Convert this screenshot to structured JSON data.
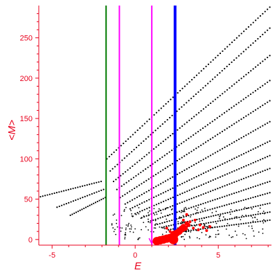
{
  "chart_data": {
    "type": "scatter",
    "xlabel": "E",
    "ylabel": "<M>",
    "xlim": [
      -5.8,
      8.2
    ],
    "ylim": [
      -7,
      290
    ],
    "x_ticks": [
      -5,
      0,
      5
    ],
    "y_ticks": [
      0,
      50,
      100,
      150,
      200,
      250
    ],
    "grid": false,
    "colors": {
      "axis": "#e8001c",
      "black_points": "#000000",
      "red_points": "#ff0000",
      "green_line": "#007a00",
      "magenta_line": "#ff00ff",
      "blue_line": "#0000ff"
    },
    "vertical_lines": [
      {
        "x": -1.75,
        "color": "green",
        "style": "solid"
      },
      {
        "x": -0.95,
        "color": "magenta",
        "style": "solid"
      },
      {
        "x": 1.0,
        "color": "magenta",
        "style": "solid-arrow"
      },
      {
        "x": 2.4,
        "color": "blue",
        "style": "thick"
      }
    ],
    "black_series": [
      {
        "x_start": -5.7,
        "x_end": -2.05,
        "y_start": 53,
        "y_end": 72,
        "slope": 0
      },
      {
        "x_start": -4.7,
        "x_end": -1.9,
        "y_start": 40,
        "y_end": 62,
        "slope": 0
      },
      {
        "x_start": -3.9,
        "x_end": -1.8,
        "y_start": 30,
        "y_end": 52,
        "slope": 0
      },
      {
        "x_start": -1.7,
        "x_end": 8.1,
        "y_start": 100,
        "y_end": 288,
        "slope": 19.2
      },
      {
        "x_start": -1.5,
        "x_end": 8.1,
        "y_start": 85,
        "y_end": 262,
        "slope": 18.4
      },
      {
        "x_start": -1.3,
        "x_end": 8.1,
        "y_start": 72,
        "y_end": 228,
        "slope": 16.6
      },
      {
        "x_start": -1.1,
        "x_end": 8.1,
        "y_start": 62,
        "y_end": 197,
        "slope": 14.7
      },
      {
        "x_start": -0.9,
        "x_end": 8.1,
        "y_start": 52,
        "y_end": 172,
        "slope": 13.3
      },
      {
        "x_start": -0.6,
        "x_end": 8.1,
        "y_start": 44,
        "y_end": 146,
        "slope": 11.7
      },
      {
        "x_start": -0.3,
        "x_end": 8.1,
        "y_start": 38,
        "y_end": 122,
        "slope": 10.0
      },
      {
        "x_start": 0.0,
        "x_end": 8.1,
        "y_start": 32,
        "y_end": 104,
        "slope": 8.9
      },
      {
        "x_start": 0.4,
        "x_end": 8.1,
        "y_start": 27,
        "y_end": 88,
        "slope": 7.9
      },
      {
        "x_start": 0.8,
        "x_end": 8.1,
        "y_start": 22,
        "y_end": 72,
        "slope": 6.8
      },
      {
        "x_start": 1.2,
        "x_end": 8.1,
        "y_start": 18,
        "y_end": 58,
        "slope": 5.8
      },
      {
        "x_start": 1.6,
        "x_end": 8.1,
        "y_start": 15,
        "y_end": 45,
        "slope": 4.6
      },
      {
        "x_start": 2.0,
        "x_end": 8.1,
        "y_start": 12,
        "y_end": 34,
        "slope": 3.6
      },
      {
        "x_start": 2.5,
        "x_end": 8.1,
        "y_start": 9,
        "y_end": 24,
        "slope": 2.7
      }
    ],
    "red_points": [
      {
        "x": 1.3,
        "y": -2,
        "size": 6
      },
      {
        "x": 1.5,
        "y": -1,
        "size": 6
      },
      {
        "x": 1.7,
        "y": 0,
        "size": 6
      },
      {
        "x": 1.9,
        "y": 1,
        "size": 6
      },
      {
        "x": 2.1,
        "y": 2,
        "size": 6
      },
      {
        "x": 2.3,
        "y": 0,
        "size": 7
      },
      {
        "x": 2.35,
        "y": 6,
        "size": 6
      },
      {
        "x": 2.5,
        "y": 8,
        "size": 5
      },
      {
        "x": 2.65,
        "y": 10,
        "size": 5
      },
      {
        "x": 2.8,
        "y": 13,
        "size": 5
      },
      {
        "x": 2.9,
        "y": 16,
        "size": 4
      },
      {
        "x": 3.0,
        "y": 14,
        "size": 4
      },
      {
        "x": 3.1,
        "y": 20,
        "size": 3
      },
      {
        "x": 3.2,
        "y": 18,
        "size": 3
      },
      {
        "x": 3.3,
        "y": 22,
        "size": 2
      },
      {
        "x": 3.5,
        "y": 14,
        "size": 2
      },
      {
        "x": 3.6,
        "y": 24,
        "size": 2
      },
      {
        "x": 3.8,
        "y": 12,
        "size": 2
      },
      {
        "x": 3.9,
        "y": 18,
        "size": 2
      },
      {
        "x": 4.1,
        "y": 15,
        "size": 2
      },
      {
        "x": 4.3,
        "y": 11,
        "size": 2
      },
      {
        "x": 4.5,
        "y": 16,
        "size": 2
      },
      {
        "x": 3.1,
        "y": 31,
        "size": 2
      },
      {
        "x": 2.1,
        "y": 10,
        "size": 2
      },
      {
        "x": 1.9,
        "y": 14,
        "size": 2
      },
      {
        "x": 2.9,
        "y": 24,
        "size": 2
      }
    ]
  }
}
